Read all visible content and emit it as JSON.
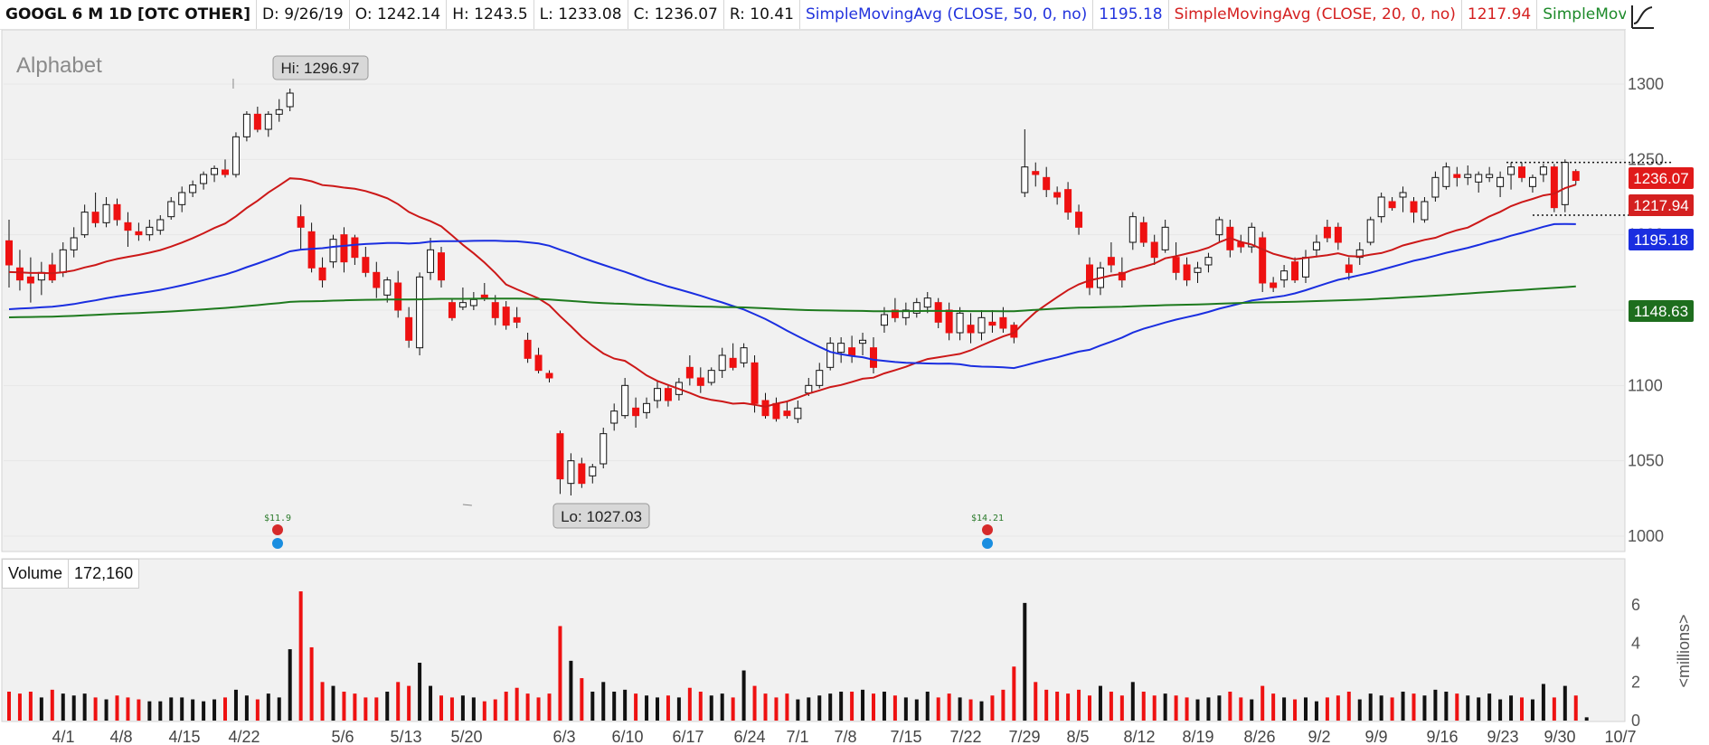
{
  "header": {
    "symbol": "GOOGL 6 M 1D [OTC OTHER]",
    "date": "D: 9/26/19",
    "open": "O: 1242.14",
    "high": "H: 1243.5",
    "low": "L: 1233.08",
    "close": "C: 1236.07",
    "range": "R: 10.41",
    "sma50_label": "SimpleMovingAvg (CLOSE, 50, 0, no)",
    "sma50_value": "1195.18",
    "sma20_label": "SimpleMovingAvg (CLOSE, 20, 0, no)",
    "sma20_value": "1217.94",
    "sma200_label": "SimpleMovingAvg ..."
  },
  "colors": {
    "up": "#ffffff",
    "down": "#ee1111",
    "sma20": "#cc1818",
    "sma50": "#1a2ee0",
    "sma200": "#1e7a1e",
    "panel_bg": "#f1f1f1"
  },
  "chart_data": {
    "type": "candlestick",
    "title": "Alphabet",
    "price_axis": {
      "ylim": [
        985,
        1325
      ],
      "ticks": [
        1000,
        1050,
        1100,
        1150,
        1200,
        1250,
        1300
      ]
    },
    "volume_axis": {
      "ylim": [
        0,
        7
      ],
      "ticks": [
        0,
        2,
        4,
        6
      ],
      "label": "<millions>"
    },
    "x_ticks": [
      "4/1",
      "4/8",
      "4/15",
      "4/22",
      "5/6",
      "5/13",
      "5/20",
      "6/3",
      "6/10",
      "6/17",
      "6/24",
      "7/1",
      "7/8",
      "7/15",
      "7/22",
      "7/29",
      "8/5",
      "8/12",
      "8/19",
      "8/26",
      "9/2",
      "9/9",
      "9/16",
      "9/23",
      "9/30",
      "10/7"
    ],
    "last_values": {
      "close": "1236.07",
      "sma20": "1217.94",
      "sma50": "1195.18",
      "sma200": "1148.63"
    },
    "annotations": {
      "high": "Hi: 1296.97",
      "low": "Lo: 1027.03",
      "event1": "$11.9",
      "event2": "$14.21"
    },
    "volume_label": "Volume",
    "volume_last": "172,160",
    "resistance": 1248,
    "support": 1213,
    "candles": [
      {
        "o": 1196,
        "h": 1210,
        "l": 1165,
        "c": 1180,
        "v": 1.5
      },
      {
        "o": 1178,
        "h": 1190,
        "l": 1163,
        "c": 1170,
        "v": 1.4
      },
      {
        "o": 1172,
        "h": 1185,
        "l": 1155,
        "c": 1168,
        "v": 1.5
      },
      {
        "o": 1170,
        "h": 1182,
        "l": 1160,
        "c": 1175,
        "v": 1.2
      },
      {
        "o": 1180,
        "h": 1188,
        "l": 1168,
        "c": 1170,
        "v": 1.6
      },
      {
        "o": 1175,
        "h": 1195,
        "l": 1172,
        "c": 1190,
        "v": 1.4
      },
      {
        "o": 1190,
        "h": 1205,
        "l": 1185,
        "c": 1198,
        "v": 1.3
      },
      {
        "o": 1200,
        "h": 1220,
        "l": 1198,
        "c": 1215,
        "v": 1.4
      },
      {
        "o": 1215,
        "h": 1228,
        "l": 1205,
        "c": 1208,
        "v": 1.2
      },
      {
        "o": 1208,
        "h": 1225,
        "l": 1205,
        "c": 1220,
        "v": 1.1
      },
      {
        "o": 1220,
        "h": 1224,
        "l": 1206,
        "c": 1210,
        "v": 1.3
      },
      {
        "o": 1208,
        "h": 1215,
        "l": 1192,
        "c": 1203,
        "v": 1.2
      },
      {
        "o": 1202,
        "h": 1208,
        "l": 1196,
        "c": 1200,
        "v": 1.1
      },
      {
        "o": 1200,
        "h": 1210,
        "l": 1196,
        "c": 1205,
        "v": 1.0
      },
      {
        "o": 1203,
        "h": 1213,
        "l": 1200,
        "c": 1210,
        "v": 1.0
      },
      {
        "o": 1212,
        "h": 1225,
        "l": 1210,
        "c": 1222,
        "v": 1.2
      },
      {
        "o": 1220,
        "h": 1232,
        "l": 1215,
        "c": 1228,
        "v": 1.2
      },
      {
        "o": 1228,
        "h": 1236,
        "l": 1225,
        "c": 1233,
        "v": 1.1
      },
      {
        "o": 1234,
        "h": 1242,
        "l": 1230,
        "c": 1240,
        "v": 1.0
      },
      {
        "o": 1240,
        "h": 1246,
        "l": 1235,
        "c": 1244,
        "v": 1.1
      },
      {
        "o": 1243,
        "h": 1250,
        "l": 1238,
        "c": 1240,
        "v": 1.2
      },
      {
        "o": 1240,
        "h": 1268,
        "l": 1238,
        "c": 1265,
        "v": 1.6
      },
      {
        "o": 1265,
        "h": 1282,
        "l": 1262,
        "c": 1280,
        "v": 1.3
      },
      {
        "o": 1280,
        "h": 1285,
        "l": 1268,
        "c": 1270,
        "v": 1.1
      },
      {
        "o": 1270,
        "h": 1282,
        "l": 1265,
        "c": 1280,
        "v": 1.4
      },
      {
        "o": 1280,
        "h": 1290,
        "l": 1275,
        "c": 1283,
        "v": 1.2
      },
      {
        "o": 1285,
        "h": 1297,
        "l": 1282,
        "c": 1294,
        "v": 3.7
      },
      {
        "o": 1212,
        "h": 1220,
        "l": 1190,
        "c": 1205,
        "v": 6.7
      },
      {
        "o": 1202,
        "h": 1208,
        "l": 1175,
        "c": 1178,
        "v": 3.8
      },
      {
        "o": 1178,
        "h": 1185,
        "l": 1165,
        "c": 1170,
        "v": 2.0
      },
      {
        "o": 1182,
        "h": 1200,
        "l": 1178,
        "c": 1197,
        "v": 1.8
      },
      {
        "o": 1200,
        "h": 1205,
        "l": 1175,
        "c": 1182,
        "v": 1.5
      },
      {
        "o": 1198,
        "h": 1200,
        "l": 1180,
        "c": 1185,
        "v": 1.4
      },
      {
        "o": 1185,
        "h": 1192,
        "l": 1172,
        "c": 1175,
        "v": 1.2
      },
      {
        "o": 1175,
        "h": 1182,
        "l": 1158,
        "c": 1165,
        "v": 1.2
      },
      {
        "o": 1160,
        "h": 1172,
        "l": 1155,
        "c": 1170,
        "v": 1.5
      },
      {
        "o": 1168,
        "h": 1176,
        "l": 1145,
        "c": 1150,
        "v": 2.0
      },
      {
        "o": 1145,
        "h": 1152,
        "l": 1125,
        "c": 1130,
        "v": 1.8
      },
      {
        "o": 1125,
        "h": 1175,
        "l": 1120,
        "c": 1172,
        "v": 3.0
      },
      {
        "o": 1175,
        "h": 1198,
        "l": 1170,
        "c": 1190,
        "v": 1.8
      },
      {
        "o": 1188,
        "h": 1192,
        "l": 1165,
        "c": 1170,
        "v": 1.3
      },
      {
        "o": 1155,
        "h": 1158,
        "l": 1143,
        "c": 1145,
        "v": 1.2
      },
      {
        "o": 1152,
        "h": 1165,
        "l": 1150,
        "c": 1155,
        "v": 1.3
      },
      {
        "o": 1153,
        "h": 1162,
        "l": 1150,
        "c": 1157,
        "v": 1.2
      },
      {
        "o": 1160,
        "h": 1168,
        "l": 1156,
        "c": 1158,
        "v": 1.0
      },
      {
        "o": 1155,
        "h": 1160,
        "l": 1140,
        "c": 1145,
        "v": 1.1
      },
      {
        "o": 1152,
        "h": 1156,
        "l": 1137,
        "c": 1140,
        "v": 1.5
      },
      {
        "o": 1145,
        "h": 1152,
        "l": 1138,
        "c": 1142,
        "v": 1.7
      },
      {
        "o": 1130,
        "h": 1135,
        "l": 1115,
        "c": 1118,
        "v": 1.4
      },
      {
        "o": 1120,
        "h": 1125,
        "l": 1108,
        "c": 1110,
        "v": 1.2
      },
      {
        "o": 1108,
        "h": 1110,
        "l": 1102,
        "c": 1105,
        "v": 1.4
      },
      {
        "o": 1068,
        "h": 1070,
        "l": 1028,
        "c": 1038,
        "v": 4.9
      },
      {
        "o": 1035,
        "h": 1055,
        "l": 1027,
        "c": 1050,
        "v": 3.1
      },
      {
        "o": 1048,
        "h": 1052,
        "l": 1032,
        "c": 1035,
        "v": 2.2
      },
      {
        "o": 1040,
        "h": 1048,
        "l": 1035,
        "c": 1046,
        "v": 1.5
      },
      {
        "o": 1048,
        "h": 1072,
        "l": 1045,
        "c": 1068,
        "v": 2.0
      },
      {
        "o": 1075,
        "h": 1088,
        "l": 1070,
        "c": 1083,
        "v": 1.5
      },
      {
        "o": 1080,
        "h": 1105,
        "l": 1078,
        "c": 1100,
        "v": 1.6
      },
      {
        "o": 1085,
        "h": 1092,
        "l": 1072,
        "c": 1080,
        "v": 1.4
      },
      {
        "o": 1082,
        "h": 1092,
        "l": 1078,
        "c": 1088,
        "v": 1.3
      },
      {
        "o": 1090,
        "h": 1103,
        "l": 1085,
        "c": 1098,
        "v": 1.2
      },
      {
        "o": 1098,
        "h": 1100,
        "l": 1086,
        "c": 1090,
        "v": 1.3
      },
      {
        "o": 1094,
        "h": 1105,
        "l": 1090,
        "c": 1102,
        "v": 1.2
      },
      {
        "o": 1112,
        "h": 1120,
        "l": 1100,
        "c": 1105,
        "v": 1.7
      },
      {
        "o": 1105,
        "h": 1112,
        "l": 1095,
        "c": 1100,
        "v": 1.5
      },
      {
        "o": 1102,
        "h": 1112,
        "l": 1100,
        "c": 1110,
        "v": 1.3
      },
      {
        "o": 1110,
        "h": 1125,
        "l": 1105,
        "c": 1120,
        "v": 1.4
      },
      {
        "o": 1118,
        "h": 1128,
        "l": 1110,
        "c": 1112,
        "v": 1.2
      },
      {
        "o": 1115,
        "h": 1128,
        "l": 1112,
        "c": 1125,
        "v": 2.6
      },
      {
        "o": 1115,
        "h": 1120,
        "l": 1082,
        "c": 1088,
        "v": 1.8
      },
      {
        "o": 1090,
        "h": 1095,
        "l": 1078,
        "c": 1080,
        "v": 1.4
      },
      {
        "o": 1088,
        "h": 1092,
        "l": 1076,
        "c": 1078,
        "v": 1.2
      },
      {
        "o": 1083,
        "h": 1090,
        "l": 1078,
        "c": 1080,
        "v": 1.4
      },
      {
        "o": 1078,
        "h": 1090,
        "l": 1075,
        "c": 1085,
        "v": 1.1
      },
      {
        "o": 1095,
        "h": 1105,
        "l": 1093,
        "c": 1100,
        "v": 1.2
      },
      {
        "o": 1100,
        "h": 1115,
        "l": 1098,
        "c": 1110,
        "v": 1.3
      },
      {
        "o": 1112,
        "h": 1132,
        "l": 1110,
        "c": 1128,
        "v": 1.4
      },
      {
        "o": 1122,
        "h": 1132,
        "l": 1115,
        "c": 1128,
        "v": 1.5
      },
      {
        "o": 1125,
        "h": 1133,
        "l": 1115,
        "c": 1120,
        "v": 1.5
      },
      {
        "o": 1128,
        "h": 1135,
        "l": 1120,
        "c": 1130,
        "v": 1.6
      },
      {
        "o": 1125,
        "h": 1132,
        "l": 1108,
        "c": 1112,
        "v": 1.4
      },
      {
        "o": 1140,
        "h": 1152,
        "l": 1135,
        "c": 1147,
        "v": 1.5
      },
      {
        "o": 1150,
        "h": 1158,
        "l": 1142,
        "c": 1145,
        "v": 1.3
      },
      {
        "o": 1145,
        "h": 1155,
        "l": 1140,
        "c": 1150,
        "v": 1.2
      },
      {
        "o": 1148,
        "h": 1158,
        "l": 1145,
        "c": 1155,
        "v": 1.1
      },
      {
        "o": 1152,
        "h": 1162,
        "l": 1148,
        "c": 1158,
        "v": 1.5
      },
      {
        "o": 1155,
        "h": 1158,
        "l": 1138,
        "c": 1142,
        "v": 1.2
      },
      {
        "o": 1150,
        "h": 1155,
        "l": 1130,
        "c": 1135,
        "v": 1.4
      },
      {
        "o": 1135,
        "h": 1152,
        "l": 1130,
        "c": 1148,
        "v": 1.2
      },
      {
        "o": 1140,
        "h": 1148,
        "l": 1128,
        "c": 1135,
        "v": 1.1
      },
      {
        "o": 1135,
        "h": 1150,
        "l": 1130,
        "c": 1145,
        "v": 1.0
      },
      {
        "o": 1142,
        "h": 1150,
        "l": 1135,
        "c": 1140,
        "v": 1.3
      },
      {
        "o": 1145,
        "h": 1152,
        "l": 1135,
        "c": 1138,
        "v": 1.6
      },
      {
        "o": 1140,
        "h": 1142,
        "l": 1128,
        "c": 1132,
        "v": 2.8
      },
      {
        "o": 1228,
        "h": 1270,
        "l": 1225,
        "c": 1245,
        "v": 6.1
      },
      {
        "o": 1242,
        "h": 1248,
        "l": 1232,
        "c": 1240,
        "v": 2.0
      },
      {
        "o": 1238,
        "h": 1245,
        "l": 1225,
        "c": 1230,
        "v": 1.6
      },
      {
        "o": 1228,
        "h": 1232,
        "l": 1220,
        "c": 1225,
        "v": 1.5
      },
      {
        "o": 1230,
        "h": 1235,
        "l": 1210,
        "c": 1215,
        "v": 1.4
      },
      {
        "o": 1215,
        "h": 1220,
        "l": 1200,
        "c": 1205,
        "v": 1.6
      },
      {
        "o": 1180,
        "h": 1185,
        "l": 1160,
        "c": 1165,
        "v": 1.3
      },
      {
        "o": 1165,
        "h": 1182,
        "l": 1160,
        "c": 1178,
        "v": 1.8
      },
      {
        "o": 1185,
        "h": 1195,
        "l": 1175,
        "c": 1180,
        "v": 1.5
      },
      {
        "o": 1175,
        "h": 1185,
        "l": 1165,
        "c": 1170,
        "v": 1.3
      },
      {
        "o": 1195,
        "h": 1215,
        "l": 1190,
        "c": 1212,
        "v": 2.0
      },
      {
        "o": 1208,
        "h": 1212,
        "l": 1192,
        "c": 1195,
        "v": 1.5
      },
      {
        "o": 1195,
        "h": 1200,
        "l": 1180,
        "c": 1185,
        "v": 1.3
      },
      {
        "o": 1190,
        "h": 1210,
        "l": 1188,
        "c": 1205,
        "v": 1.4
      },
      {
        "o": 1185,
        "h": 1195,
        "l": 1170,
        "c": 1175,
        "v": 1.3
      },
      {
        "o": 1180,
        "h": 1185,
        "l": 1166,
        "c": 1170,
        "v": 1.2
      },
      {
        "o": 1175,
        "h": 1182,
        "l": 1168,
        "c": 1178,
        "v": 1.1
      },
      {
        "o": 1180,
        "h": 1188,
        "l": 1175,
        "c": 1185,
        "v": 1.2
      },
      {
        "o": 1200,
        "h": 1212,
        "l": 1195,
        "c": 1210,
        "v": 1.3
      },
      {
        "o": 1205,
        "h": 1210,
        "l": 1185,
        "c": 1190,
        "v": 1.5
      },
      {
        "o": 1195,
        "h": 1200,
        "l": 1188,
        "c": 1192,
        "v": 1.2
      },
      {
        "o": 1192,
        "h": 1208,
        "l": 1188,
        "c": 1205,
        "v": 1.1
      },
      {
        "o": 1198,
        "h": 1202,
        "l": 1162,
        "c": 1168,
        "v": 1.8
      },
      {
        "o": 1168,
        "h": 1172,
        "l": 1162,
        "c": 1165,
        "v": 1.4
      },
      {
        "o": 1170,
        "h": 1180,
        "l": 1165,
        "c": 1176,
        "v": 1.2
      },
      {
        "o": 1182,
        "h": 1185,
        "l": 1168,
        "c": 1170,
        "v": 1.1
      },
      {
        "o": 1172,
        "h": 1190,
        "l": 1168,
        "c": 1185,
        "v": 1.2
      },
      {
        "o": 1190,
        "h": 1200,
        "l": 1185,
        "c": 1195,
        "v": 1.0
      },
      {
        "o": 1205,
        "h": 1210,
        "l": 1195,
        "c": 1198,
        "v": 1.2
      },
      {
        "o": 1205,
        "h": 1208,
        "l": 1190,
        "c": 1195,
        "v": 1.3
      },
      {
        "o": 1180,
        "h": 1185,
        "l": 1170,
        "c": 1175,
        "v": 1.5
      },
      {
        "o": 1185,
        "h": 1195,
        "l": 1180,
        "c": 1190,
        "v": 1.1
      },
      {
        "o": 1195,
        "h": 1212,
        "l": 1193,
        "c": 1210,
        "v": 1.4
      },
      {
        "o": 1212,
        "h": 1228,
        "l": 1208,
        "c": 1225,
        "v": 1.3
      },
      {
        "o": 1222,
        "h": 1225,
        "l": 1216,
        "c": 1218,
        "v": 1.2
      },
      {
        "o": 1225,
        "h": 1232,
        "l": 1215,
        "c": 1228,
        "v": 1.5
      },
      {
        "o": 1222,
        "h": 1225,
        "l": 1208,
        "c": 1215,
        "v": 1.4
      },
      {
        "o": 1210,
        "h": 1225,
        "l": 1208,
        "c": 1222,
        "v": 1.3
      },
      {
        "o": 1225,
        "h": 1242,
        "l": 1222,
        "c": 1238,
        "v": 1.6
      },
      {
        "o": 1232,
        "h": 1248,
        "l": 1230,
        "c": 1245,
        "v": 1.5
      },
      {
        "o": 1240,
        "h": 1245,
        "l": 1232,
        "c": 1238,
        "v": 1.4
      },
      {
        "o": 1238,
        "h": 1246,
        "l": 1233,
        "c": 1240,
        "v": 1.3
      },
      {
        "o": 1235,
        "h": 1242,
        "l": 1228,
        "c": 1240,
        "v": 1.2
      },
      {
        "o": 1238,
        "h": 1245,
        "l": 1235,
        "c": 1240,
        "v": 1.4
      },
      {
        "o": 1232,
        "h": 1242,
        "l": 1225,
        "c": 1238,
        "v": 1.1
      },
      {
        "o": 1240,
        "h": 1248,
        "l": 1230,
        "c": 1245,
        "v": 1.3
      },
      {
        "o": 1245,
        "h": 1248,
        "l": 1235,
        "c": 1238,
        "v": 1.2
      },
      {
        "o": 1232,
        "h": 1240,
        "l": 1228,
        "c": 1238,
        "v": 1.1
      },
      {
        "o": 1240,
        "h": 1247,
        "l": 1235,
        "c": 1245,
        "v": 1.9
      },
      {
        "o": 1245,
        "h": 1247,
        "l": 1215,
        "c": 1218,
        "v": 1.2
      },
      {
        "o": 1220,
        "h": 1250,
        "l": 1215,
        "c": 1248,
        "v": 1.8
      },
      {
        "o": 1242,
        "h": 1243.5,
        "l": 1233.08,
        "c": 1236.07,
        "v": 1.3
      },
      {
        "o": 1236,
        "h": 1236,
        "l": 1236,
        "c": 1236,
        "v": 0.17
      }
    ]
  }
}
